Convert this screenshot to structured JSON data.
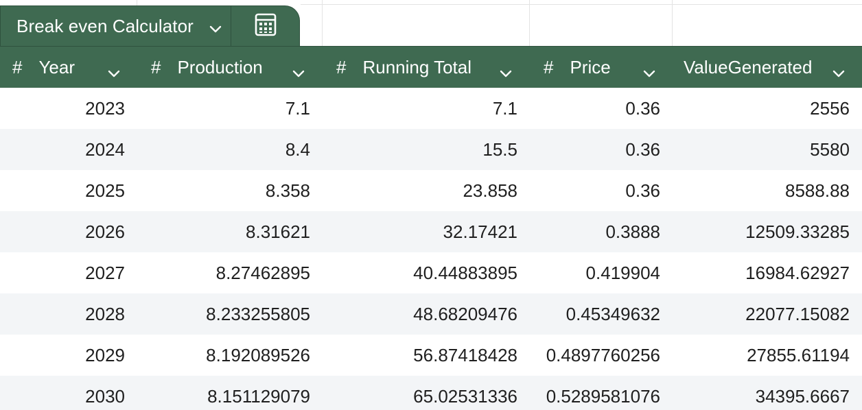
{
  "table": {
    "name": "Break even Calculator",
    "columns": [
      {
        "type_glyph": "#",
        "label": "Year"
      },
      {
        "type_glyph": "#",
        "label": "Production"
      },
      {
        "type_glyph": "#",
        "label": "Running Total"
      },
      {
        "type_glyph": "#",
        "label": "Price"
      },
      {
        "type_glyph": "",
        "label": "ValueGenerated"
      }
    ],
    "rows": [
      [
        "2023",
        "7.1",
        "7.1",
        "0.36",
        "2556"
      ],
      [
        "2024",
        "8.4",
        "15.5",
        "0.36",
        "5580"
      ],
      [
        "2025",
        "8.358",
        "23.858",
        "0.36",
        "8588.88"
      ],
      [
        "2026",
        "8.31621",
        "32.17421",
        "0.3888",
        "12509.33285"
      ],
      [
        "2027",
        "8.27462895",
        "40.44883895",
        "0.419904",
        "16984.62927"
      ],
      [
        "2028",
        "8.233255805",
        "48.68209476",
        "0.45349632",
        "22077.15082"
      ],
      [
        "2029",
        "8.192089526",
        "56.87418428",
        "0.4897760256",
        "27855.61194"
      ],
      [
        "2030",
        "8.151129079",
        "65.02531336",
        "0.5289581076",
        "34395.6667"
      ]
    ]
  },
  "icons": {
    "table_menu": "chevron-down-icon",
    "calculator": "calculator-icon",
    "column_menu": "chevron-down-icon"
  },
  "colors": {
    "header_bg": "#3f6a51",
    "header_text": "#ffffff",
    "alt_row_bg": "#f3f5f7",
    "cell_text": "#1f1f1f"
  }
}
